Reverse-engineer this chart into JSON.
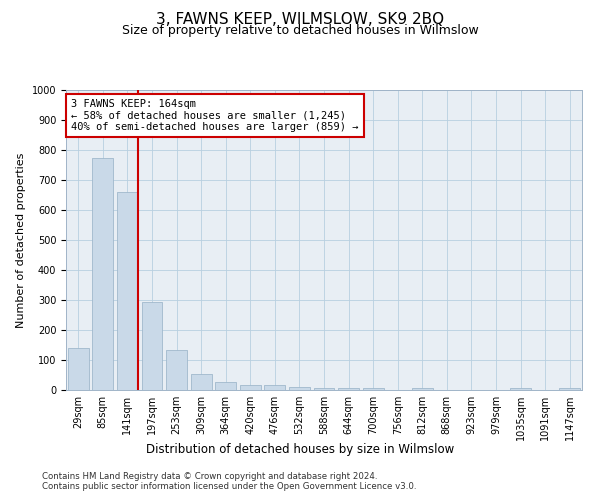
{
  "title": "3, FAWNS KEEP, WILMSLOW, SK9 2BQ",
  "subtitle": "Size of property relative to detached houses in Wilmslow",
  "xlabel": "Distribution of detached houses by size in Wilmslow",
  "ylabel": "Number of detached properties",
  "bins": [
    "29sqm",
    "85sqm",
    "141sqm",
    "197sqm",
    "253sqm",
    "309sqm",
    "364sqm",
    "420sqm",
    "476sqm",
    "532sqm",
    "588sqm",
    "644sqm",
    "700sqm",
    "756sqm",
    "812sqm",
    "868sqm",
    "923sqm",
    "979sqm",
    "1035sqm",
    "1091sqm",
    "1147sqm"
  ],
  "values": [
    140,
    775,
    660,
    292,
    135,
    52,
    28,
    18,
    18,
    11,
    8,
    8,
    8,
    0,
    8,
    0,
    0,
    0,
    8,
    0,
    8
  ],
  "ylim": [
    0,
    1000
  ],
  "yticks": [
    0,
    100,
    200,
    300,
    400,
    500,
    600,
    700,
    800,
    900,
    1000
  ],
  "bar_color": "#c9d9e8",
  "bar_edgecolor": "#a0b8cc",
  "marker_bin_index": 2,
  "annotation_line1": "3 FAWNS KEEP: 164sqm",
  "annotation_line2": "← 58% of detached houses are smaller (1,245)",
  "annotation_line3": "40% of semi-detached houses are larger (859) →",
  "marker_color": "#cc0000",
  "annotation_box_facecolor": "#ffffff",
  "annotation_box_edgecolor": "#cc0000",
  "grid_color": "#b8cfe0",
  "plot_bg": "#e8eef4",
  "fig_bg": "#ffffff",
  "title_fontsize": 11,
  "subtitle_fontsize": 9,
  "ylabel_fontsize": 8,
  "xlabel_fontsize": 8.5,
  "tick_fontsize": 7,
  "annot_fontsize": 7.5,
  "footer1": "Contains HM Land Registry data © Crown copyright and database right 2024.",
  "footer2": "Contains public sector information licensed under the Open Government Licence v3.0.",
  "footer_fontsize": 6.2
}
